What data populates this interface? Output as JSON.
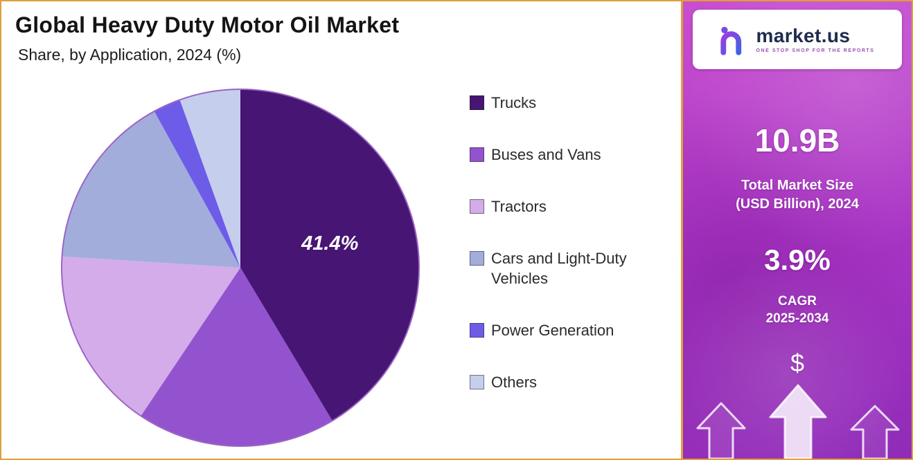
{
  "header": {
    "title": "Global Heavy Duty Motor Oil Market",
    "subtitle": "Share, by Application, 2024 (%)"
  },
  "chart_data": {
    "type": "pie",
    "title": "Global Heavy Duty Motor Oil Market",
    "subtitle": "Share, by Application, 2024 (%)",
    "unit": "%",
    "start_angle": "top",
    "direction": "clockwise",
    "legend_position": "right",
    "slices": [
      {
        "label": "Trucks",
        "value": 41.4,
        "color": "#471573",
        "show_value_label": true
      },
      {
        "label": "Buses and Vans",
        "value": 18.0,
        "color": "#9353CE",
        "show_value_label": false
      },
      {
        "label": "Tractors",
        "value": 16.6,
        "color": "#D4ACE9",
        "show_value_label": false
      },
      {
        "label": "Cars and Light-Duty Vehicles",
        "value": 16.0,
        "color": "#A2ADDC",
        "show_value_label": false
      },
      {
        "label": "Power Generation",
        "value": 2.5,
        "color": "#6D5CE8",
        "show_value_label": false
      },
      {
        "label": "Others",
        "value": 5.5,
        "color": "#C6CEEE",
        "show_value_label": false
      }
    ]
  },
  "sidebar": {
    "logo": {
      "brand": "market.us",
      "tagline": "ONE STOP SHOP FOR THE REPORTS"
    },
    "stats": [
      {
        "value": "10.9B",
        "caption_lines": [
          "Total Market Size",
          "(USD Billion), 2024"
        ]
      },
      {
        "value": "3.9%",
        "caption_lines": [
          "CAGR",
          "2025-2034"
        ]
      }
    ],
    "dollar_symbol": "$"
  },
  "colors": {
    "panel_border": "#DF9F3B",
    "panel_gradient_top": "#C94FD0",
    "panel_gradient_mid": "#AC35C6",
    "panel_gradient_bottom": "#8F2CB8",
    "brand_text": "#1E2B4F",
    "tagline_text": "#9A4FB0",
    "title_text": "#141414",
    "legend_text": "#2B2B2B",
    "pie_outline": "#9B64C4"
  }
}
